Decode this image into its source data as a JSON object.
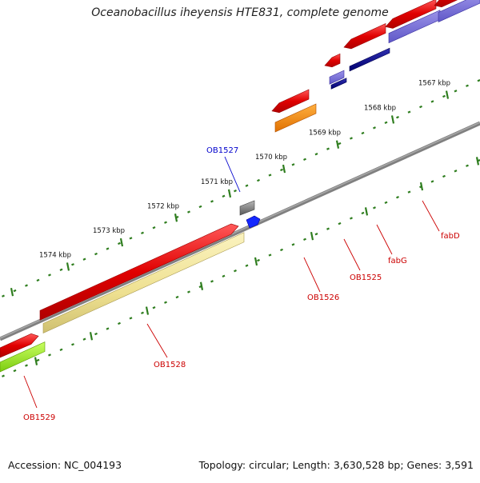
{
  "title": "Oceanobacillus iheyensis HTE831, complete genome",
  "footer": {
    "accession": "Accession: NC_004193",
    "stats": "Topology: circular; Length: 3,630,528 bp; Genes: 3,591"
  },
  "colors": {
    "backbone": "#808080",
    "tick": "#2e7d1e",
    "red_gene": "#e00000",
    "label_red": "#cc0000",
    "label_blue": "#0000cc"
  },
  "ticks": [
    {
      "label": "1567 kbp"
    },
    {
      "label": "1568 kbp"
    },
    {
      "label": "1569 kbp"
    },
    {
      "label": "1570 kbp"
    },
    {
      "label": "1571 kbp"
    },
    {
      "label": "1572 kbp"
    },
    {
      "label": "1573 kbp"
    },
    {
      "label": "1574 kbp"
    }
  ],
  "genes": [
    {
      "name": "OB1527",
      "color": "blue"
    },
    {
      "name": "OB1526",
      "color": "red"
    },
    {
      "name": "OB1525",
      "color": "red"
    },
    {
      "name": "fabG",
      "color": "red"
    },
    {
      "name": "fabD",
      "color": "red"
    },
    {
      "name": "OB1528",
      "color": "red"
    },
    {
      "name": "OB1529",
      "color": "red"
    }
  ]
}
